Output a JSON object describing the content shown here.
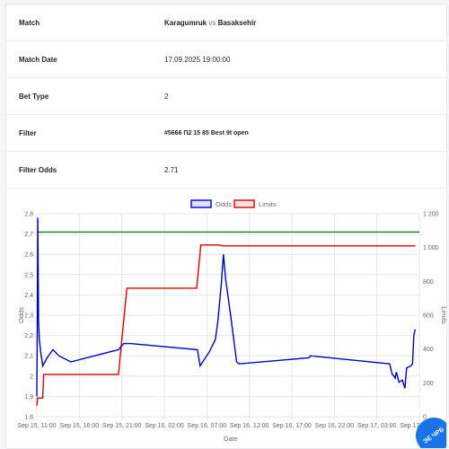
{
  "info": {
    "match_label": "Match",
    "match_home": "Karagumruk",
    "match_vs": " vs ",
    "match_away": "Basaksehir",
    "date_label": "Match Date",
    "date_value": "17.09.2025 19:00:00",
    "bettype_label": "Bet Type",
    "bettype_value": "2",
    "filter_label": "Filter",
    "filter_value": "#5666 П2 15 85 Best 9t open",
    "odds_label": "Filter Odds",
    "odds_value": "2.71"
  },
  "badge_text": "ЭЕ ЧРБ",
  "colors": {
    "odds": "#0000cc",
    "limits": "#dd0000",
    "filter_line": "#007700"
  },
  "chart_data": {
    "type": "line",
    "title": "",
    "xlabel": "Date",
    "ylabel": "Odds",
    "y2label": "Limits",
    "legend": [
      "Odds",
      "Limits"
    ],
    "legend_position": "top",
    "grid": true,
    "x_range_hours": [
      0,
      45
    ],
    "x_ticks": [
      {
        "h": 0,
        "label": "Sep 15, 11:00"
      },
      {
        "h": 5,
        "label": "Sep 15, 16:00"
      },
      {
        "h": 10,
        "label": "Sep 15, 21:00"
      },
      {
        "h": 15,
        "label": "Sep 16, 02:00"
      },
      {
        "h": 20,
        "label": "Sep 16, 07:00"
      },
      {
        "h": 25,
        "label": "Sep 16, 12:00"
      },
      {
        "h": 30,
        "label": "Sep 16, 17:00"
      },
      {
        "h": 35,
        "label": "Sep 16, 22:00"
      },
      {
        "h": 40,
        "label": "Sep 17, 03:00"
      },
      {
        "h": 45,
        "label": "Sep 17, 08:00"
      }
    ],
    "y_left": {
      "min": 1.8,
      "max": 2.8,
      "ticks": [
        "1,8",
        "1,9",
        "2",
        "2,1",
        "2,2",
        "2,3",
        "2,4",
        "2,5",
        "2,6",
        "2,7",
        "2,8"
      ]
    },
    "y_right": {
      "min": 0,
      "max": 1200,
      "ticks": [
        "0",
        "200",
        "400",
        "600",
        "800",
        "1 000",
        "1 200"
      ]
    },
    "filter_odds_line": 2.71,
    "odds_series": [
      [
        0.0,
        1.9
      ],
      [
        0.05,
        2.22
      ],
      [
        0.12,
        2.78
      ],
      [
        0.2,
        2.28
      ],
      [
        0.3,
        2.18
      ],
      [
        0.45,
        2.12
      ],
      [
        0.7,
        2.05
      ],
      [
        1.2,
        2.09
      ],
      [
        1.9,
        2.13
      ],
      [
        2.6,
        2.1
      ],
      [
        4.0,
        2.07
      ],
      [
        9.6,
        2.13
      ],
      [
        10.2,
        2.16
      ],
      [
        11.0,
        2.16
      ],
      [
        18.9,
        2.13
      ],
      [
        19.2,
        2.05
      ],
      [
        20.3,
        2.12
      ],
      [
        21.0,
        2.18
      ],
      [
        21.3,
        2.27
      ],
      [
        21.7,
        2.45
      ],
      [
        21.95,
        2.6
      ],
      [
        22.2,
        2.48
      ],
      [
        22.8,
        2.3
      ],
      [
        23.5,
        2.07
      ],
      [
        23.8,
        2.06
      ],
      [
        32.0,
        2.09
      ],
      [
        32.2,
        2.1
      ],
      [
        41.5,
        2.06
      ],
      [
        41.8,
        2.01
      ],
      [
        42.0,
        2.0
      ],
      [
        42.15,
        1.99
      ],
      [
        42.3,
        2.02
      ],
      [
        42.6,
        1.97
      ],
      [
        43.0,
        1.98
      ],
      [
        43.3,
        1.94
      ],
      [
        43.5,
        2.04
      ],
      [
        44.0,
        2.05
      ],
      [
        44.2,
        2.06
      ],
      [
        44.35,
        2.2
      ],
      [
        44.5,
        2.23
      ]
    ],
    "limits_series": [
      [
        0.0,
        65
      ],
      [
        0.1,
        110
      ],
      [
        0.7,
        110
      ],
      [
        0.8,
        250
      ],
      [
        1.0,
        250
      ],
      [
        9.6,
        250
      ],
      [
        10.6,
        760
      ],
      [
        18.8,
        760
      ],
      [
        19.3,
        1015
      ],
      [
        21.5,
        1015
      ],
      [
        21.8,
        1010
      ],
      [
        44.5,
        1010
      ]
    ]
  }
}
